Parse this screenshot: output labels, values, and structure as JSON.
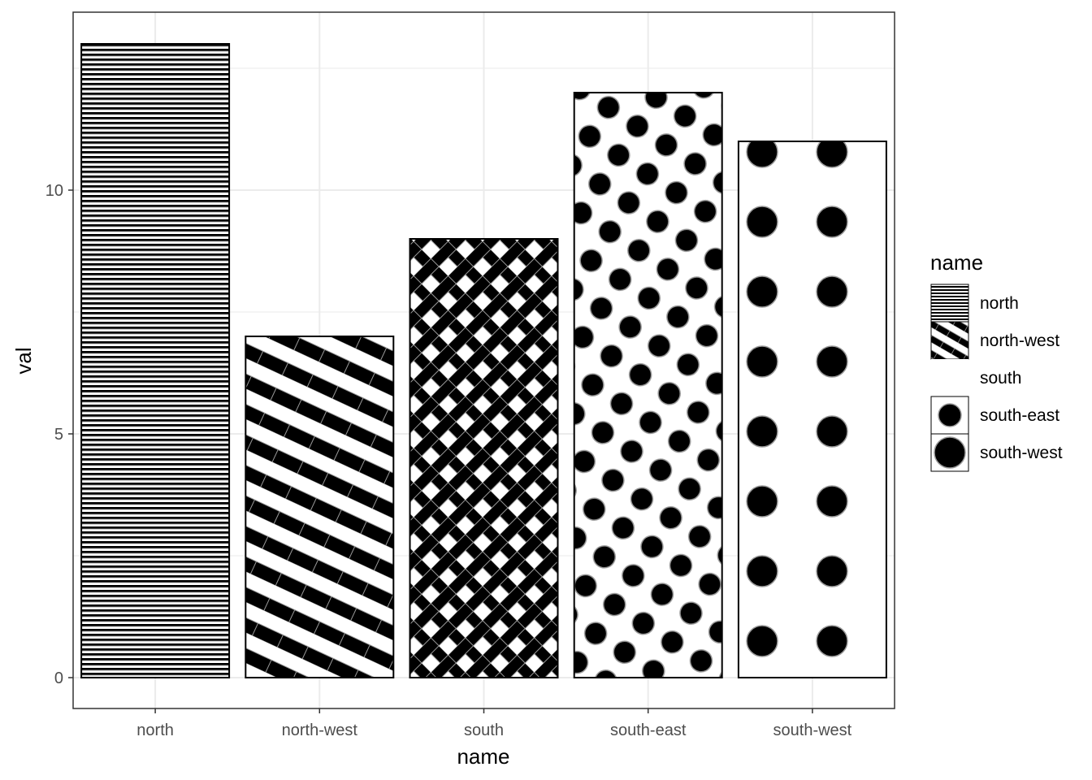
{
  "chart_data": {
    "type": "bar",
    "categories": [
      "north",
      "north-west",
      "south",
      "south-east",
      "south-west"
    ],
    "values": [
      13,
      7,
      9,
      12,
      11
    ],
    "xlabel": "name",
    "ylabel": "val",
    "yticks": [
      0,
      5,
      10
    ],
    "ytick_labels": [
      "0",
      "5",
      "10"
    ],
    "ylim": [
      -0.65,
      13.65
    ],
    "grid": true,
    "legend": {
      "title": "name",
      "position": "right",
      "entries": [
        "north",
        "north-west",
        "south",
        "south-east",
        "south-west"
      ]
    },
    "patterns": [
      "horizontal-stripes",
      "diagonal-stripes",
      "crosshatch",
      "polka-dots",
      "large-dots"
    ],
    "colors": {
      "fill": "#000000",
      "background": "#ffffff",
      "outline": "#000000",
      "grid": "#ebebeb"
    }
  }
}
